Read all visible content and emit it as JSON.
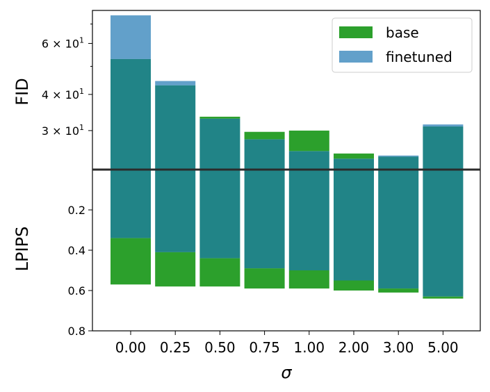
{
  "colors": {
    "base": "#2ca02c",
    "finetuned": "#1f77b4",
    "overlap": "#218487",
    "axis": "#000000",
    "divider": "#2b2b2b"
  },
  "chart_data": {
    "type": "bar",
    "xlabel": "σ",
    "categories": [
      "0.00",
      "0.25",
      "0.50",
      "0.75",
      "1.00",
      "2.00",
      "3.00",
      "5.00"
    ],
    "legend": {
      "position": "top-right",
      "entries": [
        "base",
        "finetuned"
      ]
    },
    "grid": false,
    "top_panel": {
      "ylabel": "FID",
      "yscale": "log",
      "ylim": [
        22,
        78
      ],
      "yticks": [
        {
          "value": 30,
          "label_base": "3 × 10",
          "label_exp": "1"
        },
        {
          "value": 40,
          "label_base": "4 × 10",
          "label_exp": "1"
        },
        {
          "value": 60,
          "label_base": "6 × 10",
          "label_exp": "1"
        }
      ],
      "minor_ticks": [
        50,
        70
      ],
      "series": [
        {
          "name": "base",
          "values": [
            53.0,
            43.0,
            33.5,
            29.7,
            30.0,
            25.0,
            24.4,
            31.0
          ]
        },
        {
          "name": "finetuned",
          "values": [
            75.0,
            44.5,
            33.0,
            28.0,
            25.5,
            24.0,
            24.6,
            31.5
          ]
        }
      ]
    },
    "bottom_panel": {
      "ylabel": "LPIPS",
      "ylim": [
        0.8,
        0.0
      ],
      "yticks": [
        {
          "value": 0.2,
          "label": "0.2"
        },
        {
          "value": 0.4,
          "label": "0.4"
        },
        {
          "value": 0.6,
          "label": "0.6"
        },
        {
          "value": 0.8,
          "label": "0.8"
        }
      ],
      "series": [
        {
          "name": "base",
          "values": [
            0.57,
            0.58,
            0.58,
            0.59,
            0.59,
            0.6,
            0.61,
            0.64
          ]
        },
        {
          "name": "finetuned",
          "values": [
            0.34,
            0.41,
            0.44,
            0.49,
            0.5,
            0.55,
            0.59,
            0.63
          ]
        }
      ]
    }
  }
}
